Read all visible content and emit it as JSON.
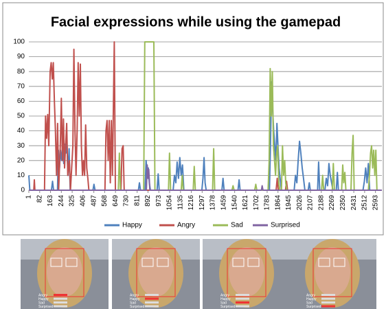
{
  "chart_data": {
    "type": "line",
    "title": "Facial expressions while using the gamepad",
    "xlim": [
      1,
      2641
    ],
    "xticks": [
      1,
      82,
      163,
      244,
      325,
      406,
      487,
      568,
      649,
      730,
      811,
      892,
      973,
      1054,
      1135,
      1216,
      1297,
      1378,
      1459,
      1540,
      1621,
      1702,
      1783,
      1864,
      1945,
      2026,
      2107,
      2188,
      2269,
      2350,
      2431,
      2512,
      2593
    ],
    "ylim": [
      0,
      100
    ],
    "yticks": [
      0,
      10,
      20,
      30,
      40,
      50,
      60,
      70,
      80,
      90,
      100
    ],
    "grid": true,
    "legend": "bottom",
    "series": [
      {
        "name": "Happy",
        "color": "#4f81bd",
        "x": [
          1,
          8,
          170,
          178,
          186,
          215,
          222,
          230,
          238,
          246,
          254,
          262,
          270,
          278,
          286,
          294,
          302,
          310,
          480,
          488,
          496,
          820,
          828,
          836,
          870,
          878,
          886,
          894,
          902,
          910,
          960,
          968,
          976,
          1080,
          1090,
          1100,
          1110,
          1120,
          1130,
          1140,
          1150,
          1160,
          1295,
          1303,
          1311,
          1319,
          1327,
          1445,
          1453,
          1461,
          1565,
          1573,
          1581,
          1800,
          1808,
          1816,
          1824,
          1832,
          1840,
          1848,
          1856,
          1864,
          1872,
          1880,
          1890,
          1985,
          1995,
          2005,
          2015,
          2025,
          2035,
          2045,
          2055,
          2065,
          2090,
          2098,
          2106,
          2160,
          2168,
          2176,
          2215,
          2225,
          2235,
          2245,
          2255,
          2265,
          2275,
          2300,
          2308,
          2316,
          2500,
          2510,
          2520,
          2530,
          2540,
          2550,
          2641
        ],
        "values": [
          10,
          0,
          0,
          6,
          0,
          0,
          27,
          15,
          27,
          20,
          30,
          18,
          31,
          25,
          31,
          10,
          28,
          0,
          0,
          4,
          0,
          0,
          5,
          0,
          0,
          20,
          12,
          15,
          5,
          0,
          0,
          11,
          0,
          0,
          10,
          5,
          19,
          8,
          22,
          10,
          17,
          0,
          0,
          8,
          22,
          5,
          0,
          0,
          8,
          0,
          0,
          7,
          0,
          0,
          30,
          73,
          55,
          40,
          30,
          20,
          45,
          30,
          15,
          8,
          0,
          0,
          10,
          5,
          20,
          33,
          25,
          15,
          8,
          0,
          0,
          5,
          0,
          0,
          19,
          0,
          0,
          8,
          3,
          18,
          10,
          5,
          0,
          0,
          12,
          0,
          0,
          6,
          15,
          5,
          18,
          0,
          0
        ]
      },
      {
        "name": "Angry",
        "color": "#c0504d",
        "x": [
          1,
          38,
          42,
          46,
          118,
          126,
          134,
          142,
          150,
          160,
          168,
          176,
          184,
          192,
          200,
          208,
          216,
          224,
          236,
          244,
          252,
          260,
          268,
          276,
          284,
          292,
          304,
          312,
          330,
          338,
          346,
          354,
          362,
          370,
          378,
          386,
          394,
          402,
          410,
          418,
          426,
          434,
          442,
          450,
          570,
          578,
          586,
          594,
          602,
          610,
          618,
          626,
          640,
          648,
          690,
          698,
          706,
          714,
          1850,
          1858,
          1866,
          1920,
          1928,
          1936,
          2641
        ],
        "values": [
          0,
          0,
          7,
          0,
          0,
          50,
          35,
          51,
          30,
          80,
          86,
          75,
          86,
          60,
          40,
          10,
          45,
          0,
          30,
          62,
          20,
          48,
          15,
          30,
          45,
          10,
          20,
          0,
          30,
          95,
          40,
          10,
          40,
          86,
          50,
          85,
          30,
          10,
          20,
          10,
          44,
          15,
          8,
          0,
          0,
          40,
          47,
          20,
          47,
          5,
          47,
          10,
          100,
          0,
          0,
          28,
          30,
          0,
          0,
          8,
          0,
          0,
          6,
          0,
          0
        ]
      },
      {
        "name": "Sad",
        "color": "#9bbb59",
        "x": [
          1,
          670,
          678,
          686,
          860,
          868,
          936,
          944,
          1045,
          1053,
          1061,
          1140,
          1148,
          1156,
          1230,
          1238,
          1246,
          1375,
          1383,
          1391,
          1520,
          1528,
          1536,
          1690,
          1698,
          1706,
          1790,
          1798,
          1806,
          1814,
          1822,
          1830,
          1838,
          1846,
          1854,
          1862,
          1870,
          1878,
          1890,
          1898,
          1906,
          1914,
          1922,
          1930,
          2190,
          2198,
          2206,
          2270,
          2278,
          2286,
          2340,
          2348,
          2356,
          2364,
          2372,
          2410,
          2418,
          2426,
          2434,
          2540,
          2548,
          2556,
          2564,
          2572,
          2580,
          2588,
          2596,
          2604,
          2641
        ],
        "values": [
          0,
          0,
          25,
          0,
          0,
          100,
          100,
          0,
          0,
          25,
          0,
          0,
          10,
          0,
          0,
          16,
          0,
          0,
          28,
          0,
          0,
          3,
          0,
          0,
          4,
          0,
          0,
          20,
          82,
          50,
          80,
          30,
          20,
          10,
          25,
          30,
          5,
          0,
          0,
          30,
          10,
          20,
          5,
          0,
          0,
          10,
          0,
          0,
          18,
          0,
          0,
          17,
          5,
          12,
          0,
          0,
          25,
          37,
          0,
          0,
          10,
          25,
          30,
          15,
          27,
          10,
          27,
          0,
          0
        ]
      },
      {
        "name": "Surprised",
        "color": "#8064a2",
        "x": [
          1,
          880,
          886,
          892,
          898,
          906,
          1740,
          1746,
          1752,
          2641
        ],
        "values": [
          0,
          0,
          17,
          8,
          14,
          0,
          0,
          3,
          0,
          0
        ]
      }
    ]
  },
  "photo_labels": [
    "Angry",
    "Happy",
    "Sad",
    "Surprised"
  ]
}
